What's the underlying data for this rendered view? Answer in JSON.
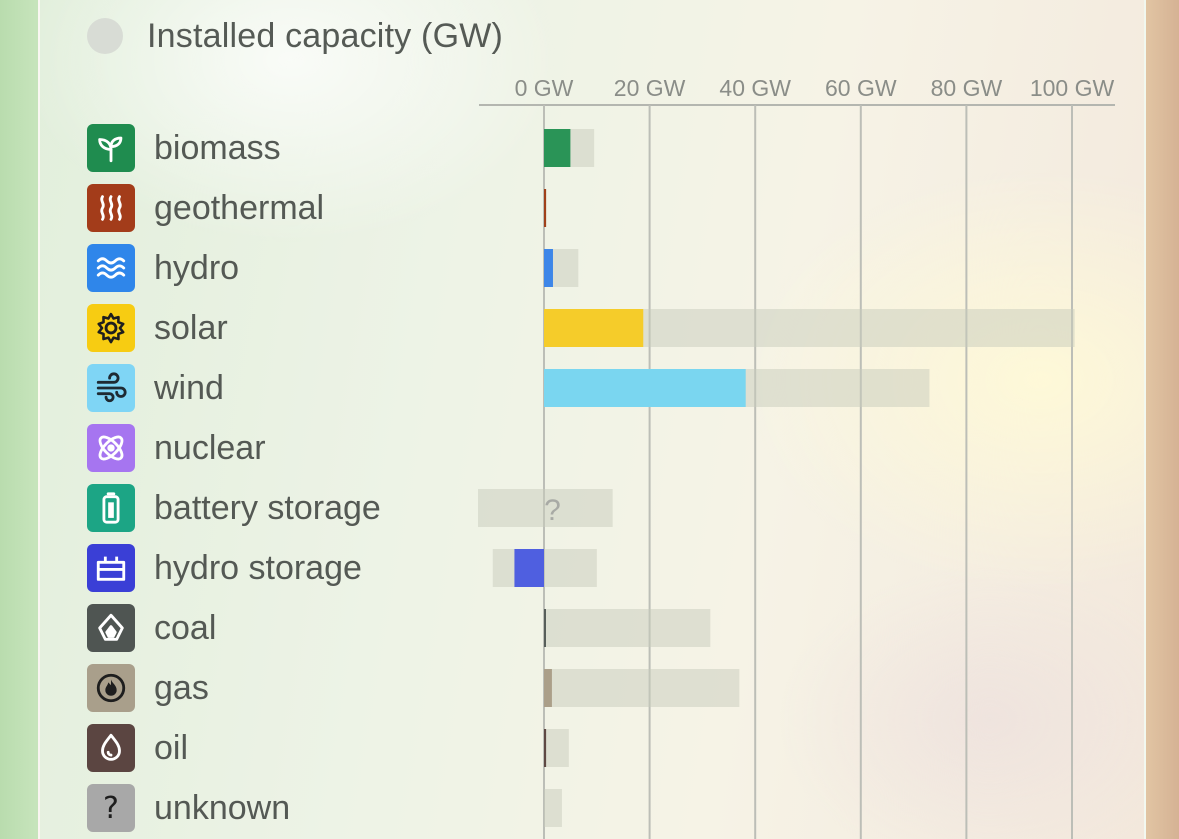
{
  "chart_data": {
    "type": "bar",
    "title": "Installed capacity (GW)",
    "unit": "GW",
    "xlim": [
      -12.5,
      104
    ],
    "ticks": [
      0,
      20,
      40,
      60,
      80,
      100
    ],
    "tick_labels": [
      "0 GW",
      "20 GW",
      "40 GW",
      "60 GW",
      "80 GW",
      "100 GW"
    ],
    "grid": true,
    "categories": [
      {
        "id": "biomass",
        "label": "biomass",
        "color": "#2a9457",
        "icon": "sprout-icon",
        "icon_bg": "#1f8c4f",
        "icon_fg": "#ffffff",
        "produced": 5,
        "capacity": 9.5
      },
      {
        "id": "geothermal",
        "label": "geothermal",
        "color": "#a0401a",
        "icon": "heat-waves-icon",
        "icon_bg": "#a33c1a",
        "icon_fg": "#ffffff",
        "produced": 0.4,
        "capacity": 0.4
      },
      {
        "id": "hydro",
        "label": "hydro",
        "color": "#3d86e8",
        "icon": "water-waves-icon",
        "icon_bg": "#2f86ea",
        "icon_fg": "#ffffff",
        "produced": 1.7,
        "capacity": 6.5
      },
      {
        "id": "solar",
        "label": "solar",
        "color": "#f5cc2a",
        "icon": "sun-icon",
        "icon_bg": "#f7cc12",
        "icon_fg": "#1e1e1e",
        "produced": 18.8,
        "capacity": 100.5
      },
      {
        "id": "wind",
        "label": "wind",
        "color": "#7ad6f0",
        "icon": "wind-icon",
        "icon_bg": "#7fd5f5",
        "icon_fg": "#1e2a33",
        "produced": 38.2,
        "capacity": 73
      },
      {
        "id": "nuclear",
        "label": "nuclear",
        "color": "#a678ef",
        "icon": "atom-icon",
        "icon_bg": "#a675f0",
        "icon_fg": "#ffffff",
        "produced": 0,
        "capacity": 0
      },
      {
        "id": "battery-storage",
        "label": "battery storage",
        "color": "#1aa88a",
        "icon": "battery-icon",
        "icon_bg": "#1ca585",
        "icon_fg": "#ffffff",
        "produced": 0,
        "capacity_min": -12.5,
        "capacity": 13,
        "unknown": true,
        "unknown_label": "?"
      },
      {
        "id": "hydro-storage",
        "label": "hydro storage",
        "color": "#4f5fe0",
        "icon": "storage-icon",
        "icon_bg": "#3a3fd6",
        "icon_fg": "#ffffff",
        "produced": -5.6,
        "capacity_min": -9.7,
        "capacity": 10
      },
      {
        "id": "coal",
        "label": "coal",
        "color": "#575e5a",
        "icon": "coal-icon",
        "icon_bg": "#4f5552",
        "icon_fg": "#ffffff",
        "produced": 0.3,
        "capacity": 31.5
      },
      {
        "id": "gas",
        "label": "gas",
        "color": "#ab9f89",
        "icon": "flame-icon",
        "icon_bg": "#a99f8b",
        "icon_fg": "#1e1e1e",
        "produced": 1.5,
        "capacity": 37
      },
      {
        "id": "oil",
        "label": "oil",
        "color": "#5e4843",
        "icon": "drop-icon",
        "icon_bg": "#5b4541",
        "icon_fg": "#ffffff",
        "produced": 0.4,
        "capacity": 4.7
      },
      {
        "id": "unknown",
        "label": "unknown",
        "color": "#9a9a9a",
        "icon": "question-icon",
        "icon_bg": "#a8a8a8",
        "icon_fg": "#1e1e1e",
        "icon_glyph": "?",
        "produced": 0,
        "capacity": 3.4
      }
    ]
  }
}
